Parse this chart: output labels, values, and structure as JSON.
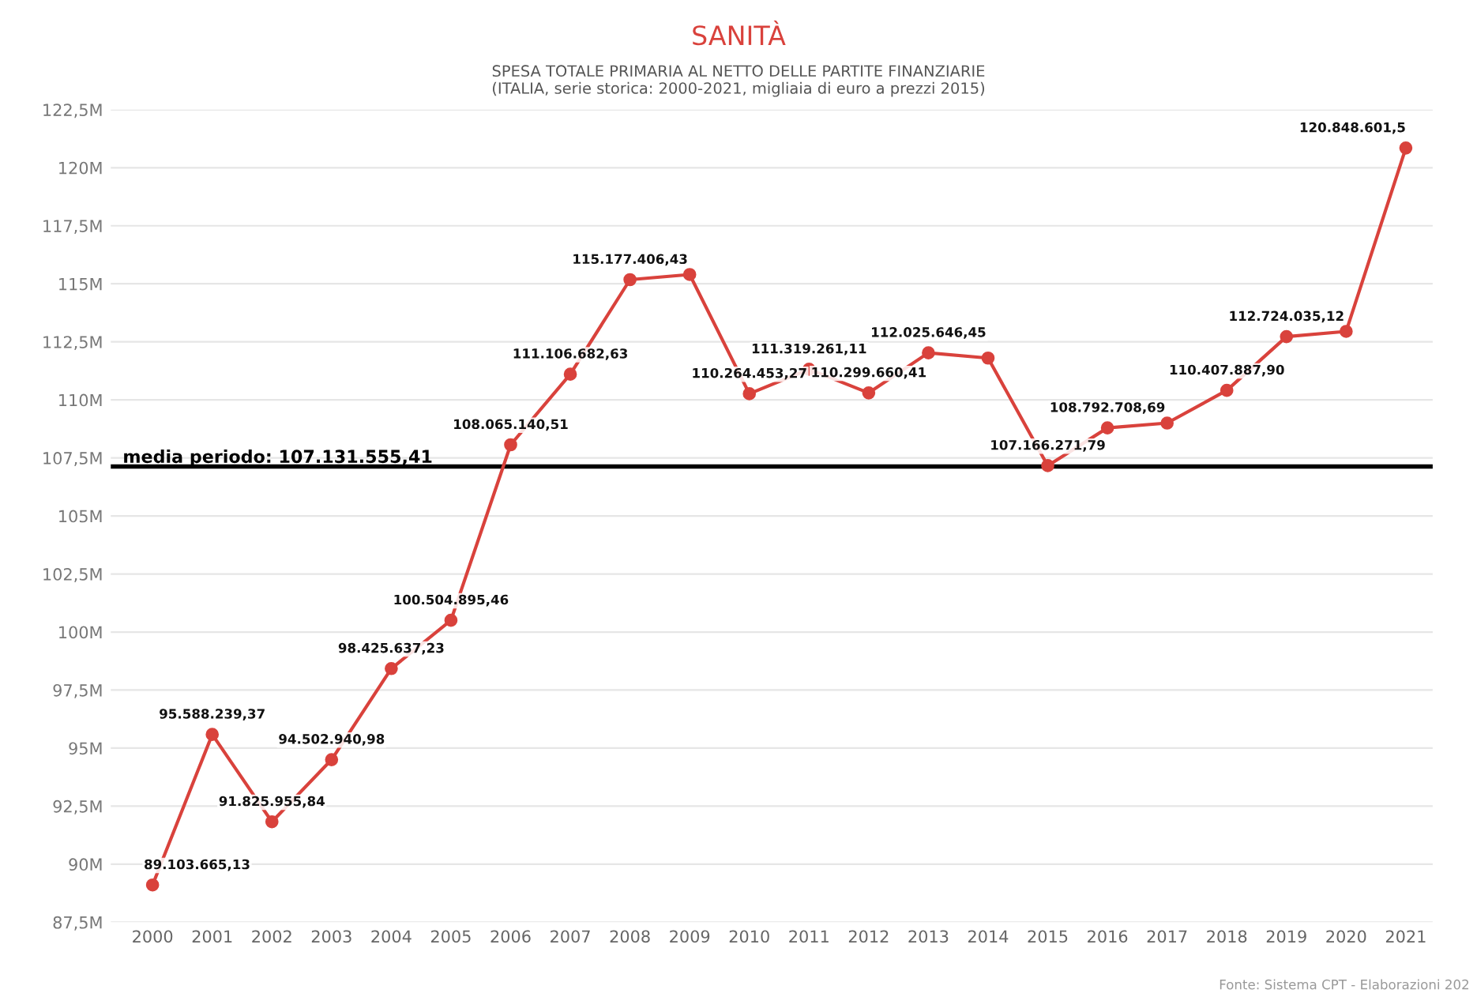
{
  "chart_data": {
    "type": "line",
    "title": "SANITÀ",
    "subtitle": "SPESA TOTALE PRIMARIA AL NETTO DELLE PARTITE FINANZIARIE\n(ITALIA, serie storica: 2000-2021, migliaia di euro a prezzi 2015)",
    "annotations": [
      "Fonte: Sistema CPT - Elaborazioni 202"
    ],
    "categories": [
      "2000",
      "2001",
      "2002",
      "2003",
      "2004",
      "2005",
      "2006",
      "2007",
      "2008",
      "2009",
      "2010",
      "2011",
      "2012",
      "2013",
      "2014",
      "2015",
      "2016",
      "2017",
      "2018",
      "2019",
      "2020",
      "2021"
    ],
    "series": [
      {
        "color": "#d9423c",
        "values": [
          89103665.13,
          95588239.37,
          91825955.84,
          94502940.98,
          98425637.23,
          100504895.46,
          108065140.51,
          111106682.63,
          115177406.43,
          115400000,
          110264453.27,
          111319261.11,
          110299660.41,
          112025646.45,
          111800000,
          107166271.79,
          108792708.69,
          109000000,
          110407887.9,
          112724035.12,
          112950000,
          120848601.5
        ],
        "value_labels": [
          "89.103.665,13",
          "95.588.239,37",
          "91.825.955,84",
          "94.502.940,98",
          "98.425.637,23",
          "100.504.895,46",
          "108.065.140,51",
          "111.106.682,63",
          "115.177.406,43",
          null,
          "110.264.453,27",
          "111.319.261,11",
          "110.299.660,41",
          "112.025.646,45",
          null,
          "107.166.271,79",
          "108.792.708,69",
          null,
          "110.407.887,90",
          "112.724.035,12",
          null,
          "120.848.601,5"
        ]
      }
    ],
    "ylim": [
      87500000,
      122500000
    ],
    "yticks": [
      {
        "value": 87500000,
        "label": "87,5M"
      },
      {
        "value": 90000000,
        "label": "90M"
      },
      {
        "value": 92500000,
        "label": "92,5M"
      },
      {
        "value": 95000000,
        "label": "95M"
      },
      {
        "value": 97500000,
        "label": "97,5M"
      },
      {
        "value": 100000000,
        "label": "100M"
      },
      {
        "value": 102500000,
        "label": "102,5M"
      },
      {
        "value": 105000000,
        "label": "105M"
      },
      {
        "value": 107500000,
        "label": "107,5M"
      },
      {
        "value": 110000000,
        "label": "110M"
      },
      {
        "value": 112500000,
        "label": "112,5M"
      },
      {
        "value": 115000000,
        "label": "115M"
      },
      {
        "value": 117500000,
        "label": "117,5M"
      },
      {
        "value": 120000000,
        "label": "120M"
      },
      {
        "value": 122500000,
        "label": "122,5M"
      }
    ],
    "ref_lines": [
      {
        "axis": "y",
        "value": 107131555.41,
        "label": "media periodo: 107.131.555,41",
        "color": "#000000"
      }
    ],
    "grid": "y",
    "legend": false,
    "marker": "circle",
    "line_style": "solid"
  }
}
